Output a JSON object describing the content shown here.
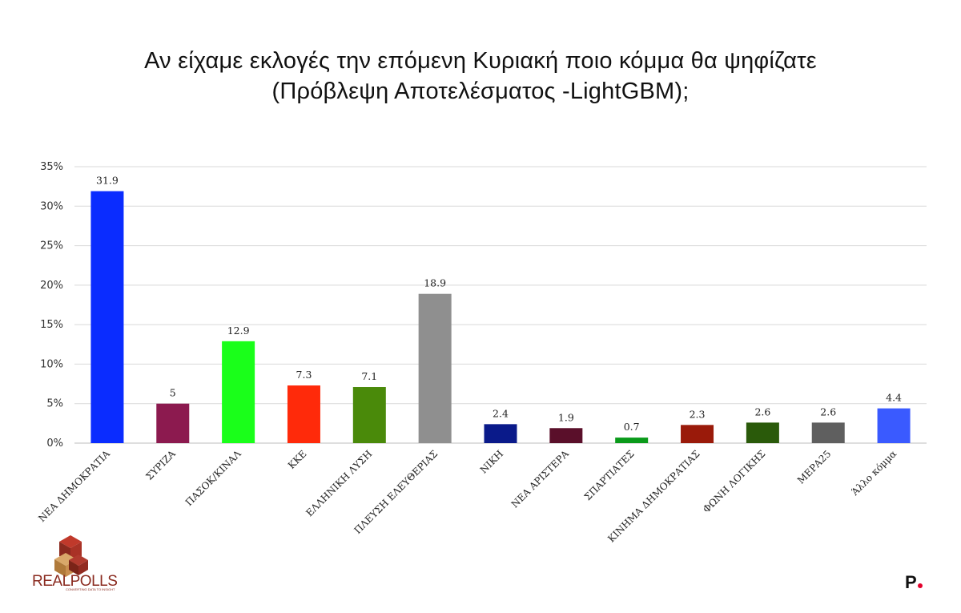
{
  "title_line1": "Αν είχαμε εκλογές την επόμενη Κυριακή ποιο κόμμα θα ψηφίζατε",
  "title_line2": "(Πρόβλεψη Αποτελέσματος -LightGBM);",
  "logo": {
    "name": "REALPOLLS",
    "tagline": "CONVERTING DATA TO INSIGHT",
    "colors": [
      "#8a2a1f",
      "#c0392b",
      "#d9a86a"
    ]
  },
  "brand_mark": {
    "letter": "P",
    "dot_color": "#e3002b"
  },
  "chart_data": {
    "type": "bar",
    "categories": [
      "ΝΕΑ ΔΗΜΟΚΡΑΤΙΑ",
      "ΣΥΡΙΖΑ",
      "ΠΑΣΟΚ/ΚΙΝΑΛ",
      "ΚΚΕ",
      "ΕΛΛΗΝΙΚΗ ΛΥΣΗ",
      "ΠΛΕΥΣΗ ΕΛΕΥΘΕΡΙΑΣ",
      "ΝΙΚΗ",
      "ΝΕΑ ΑΡΙΣΤΕΡΑ",
      "ΣΠΑΡΤΙΑΤΕΣ",
      "ΚΙΝΗΜΑ ΔΗΜΟΚΡΑΤΙΑΣ",
      "ΦΩΝΗ ΛΟΓΙΚΗΣ",
      "ΜΕΡΑ25",
      "Άλλο κόμμα"
    ],
    "values": [
      31.9,
      5,
      12.9,
      7.3,
      7.1,
      18.9,
      2.4,
      1.9,
      0.7,
      2.3,
      2.6,
      2.6,
      4.4
    ],
    "value_labels": [
      "31.9",
      "5",
      "12.9",
      "7.3",
      "7.1",
      "18.9",
      "2.4",
      "1.9",
      "0.7",
      "2.3",
      "2.6",
      "2.6",
      "4.4"
    ],
    "colors": [
      "#0a2cff",
      "#8c1a4f",
      "#1aff1a",
      "#ff2a0a",
      "#4a8a0a",
      "#8f8f8f",
      "#0a1a8a",
      "#5a0f2a",
      "#0a9a1a",
      "#9a1a0a",
      "#2a5a0a",
      "#5f5f5f",
      "#3a5aff"
    ],
    "ylim": [
      0,
      35
    ],
    "yticks": [
      0,
      5,
      10,
      15,
      20,
      25,
      30,
      35
    ],
    "ytick_labels": [
      "0%",
      "5%",
      "10%",
      "15%",
      "20%",
      "25%",
      "30%",
      "35%"
    ],
    "grid": true,
    "xlabel": "",
    "ylabel": ""
  }
}
